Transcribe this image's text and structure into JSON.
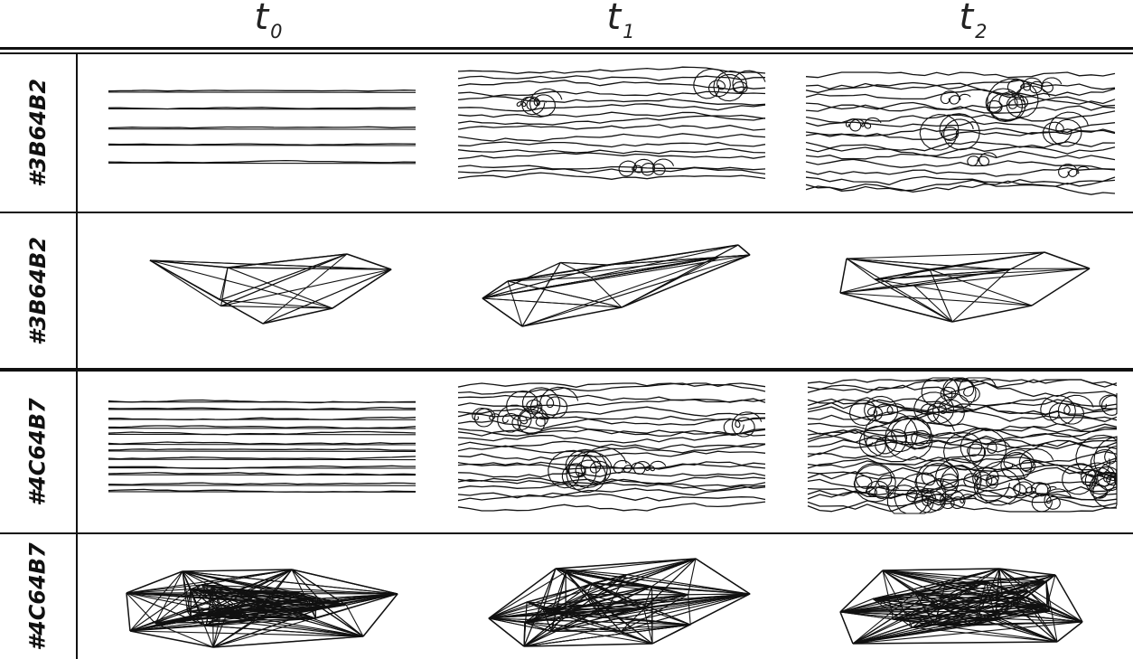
{
  "columns": [
    {
      "base": "t",
      "sub": "0"
    },
    {
      "base": "t",
      "sub": "1"
    },
    {
      "base": "t",
      "sub": "2"
    }
  ],
  "rows": [
    {
      "label": "#3B64B2",
      "kind": "streamlines"
    },
    {
      "label": "#3B64B2",
      "kind": "graph"
    },
    {
      "label": "#4C64B7",
      "kind": "streamlines"
    },
    {
      "label": "#4C64B7",
      "kind": "graph"
    }
  ]
}
